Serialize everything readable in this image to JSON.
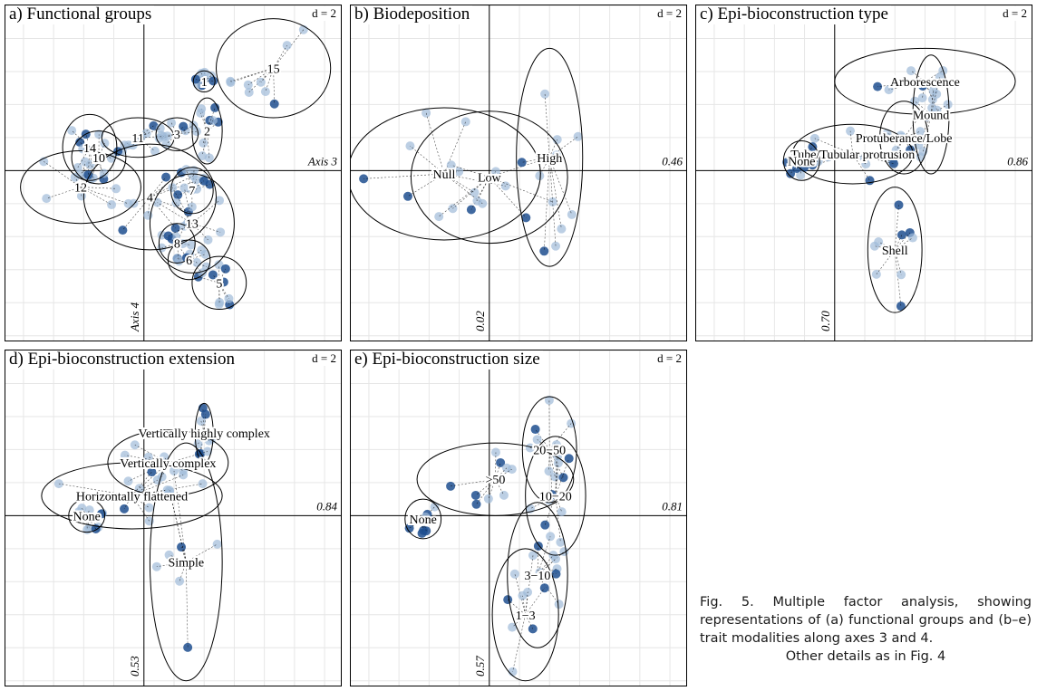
{
  "figure": {
    "caption_lines": [
      "Fig. 5. Multiple factor analysis,",
      "showing representations of (a)",
      "functional groups and (b–e) trait",
      "modalities along axes 3 and 4.",
      "Other details as in Fig. 4"
    ],
    "colors": {
      "point_light": "#9fbbd9",
      "point_dark": "#1f4f8f",
      "axis": "#000000",
      "grid": "#e6e6e6"
    }
  },
  "chart_data": [
    {
      "type": "scatter",
      "id": "a",
      "title": "a) Functional groups",
      "d_scale": "d = 2",
      "xlabel": "Axis 3",
      "ylabel": "Axis 4",
      "xlim": [
        -2.3,
        3.3
      ],
      "ylim": [
        -2.6,
        2.5
      ],
      "grid": true,
      "groups": [
        {
          "label": "1",
          "x": 1.0,
          "y": 1.35,
          "rx": 0.18,
          "ry": 0.16
        },
        {
          "label": "2",
          "x": 1.05,
          "y": 0.6,
          "rx": 0.25,
          "ry": 0.5
        },
        {
          "label": "3",
          "x": 0.55,
          "y": 0.55,
          "rx": 0.35,
          "ry": 0.25
        },
        {
          "label": "4",
          "x": 0.1,
          "y": -0.4,
          "rx": 1.1,
          "ry": 0.8
        },
        {
          "label": "5",
          "x": 1.25,
          "y": -1.7,
          "rx": 0.45,
          "ry": 0.4
        },
        {
          "label": "6",
          "x": 0.75,
          "y": -1.35,
          "rx": 0.35,
          "ry": 0.3
        },
        {
          "label": "7",
          "x": 0.8,
          "y": -0.3,
          "rx": 0.35,
          "ry": 0.35
        },
        {
          "label": "8",
          "x": 0.55,
          "y": -1.1,
          "rx": 0.3,
          "ry": 0.3
        },
        {
          "label": "10",
          "x": -0.75,
          "y": 0.2,
          "rx": 0.45,
          "ry": 0.4
        },
        {
          "label": "11",
          "x": -0.1,
          "y": 0.5,
          "rx": 0.6,
          "ry": 0.3
        },
        {
          "label": "12",
          "x": -1.05,
          "y": -0.25,
          "rx": 1.0,
          "ry": 0.55
        },
        {
          "label": "13",
          "x": 0.8,
          "y": -0.8,
          "rx": 0.7,
          "ry": 0.75
        },
        {
          "label": "14",
          "x": -0.9,
          "y": 0.35,
          "rx": 0.45,
          "ry": 0.5
        },
        {
          "label": "15",
          "x": 2.15,
          "y": 1.55,
          "rx": 0.95,
          "ry": 0.75
        }
      ]
    },
    {
      "type": "scatter",
      "id": "b",
      "title": "b) Biodeposition",
      "d_scale": "d = 2",
      "x_eigen_label": "0.46",
      "y_eigen_label": "0.02",
      "xlim": [
        -2.3,
        3.3
      ],
      "ylim": [
        -2.6,
        2.5
      ],
      "grid": true,
      "groups": [
        {
          "label": "Null",
          "x": -0.75,
          "y": -0.05,
          "rx": 1.6,
          "ry": 1.0
        },
        {
          "label": "Low",
          "x": 0.0,
          "y": -0.1,
          "rx": 1.3,
          "ry": 1.0
        },
        {
          "label": "High",
          "x": 1.0,
          "y": 0.2,
          "rx": 0.55,
          "ry": 1.65
        }
      ]
    },
    {
      "type": "scatter",
      "id": "c",
      "title": "c) Epi-bioconstruction type",
      "d_scale": "d = 2",
      "x_eigen_label": "0.86",
      "y_eigen_label": "0.70",
      "xlim": [
        -2.3,
        3.3
      ],
      "ylim": [
        -2.6,
        2.5
      ],
      "grid": true,
      "groups": [
        {
          "label": "Arborescence",
          "x": 1.5,
          "y": 1.35,
          "rx": 1.5,
          "ry": 0.5
        },
        {
          "label": "Mound",
          "x": 1.6,
          "y": 0.85,
          "rx": 0.3,
          "ry": 0.9
        },
        {
          "label": "Protuberance/Lobe",
          "x": 1.15,
          "y": 0.5,
          "rx": 0.4,
          "ry": 0.55
        },
        {
          "label": "Tube/Tubular protrusion",
          "x": 0.3,
          "y": 0.25,
          "rx": 1.0,
          "ry": 0.45
        },
        {
          "label": "None",
          "x": -0.55,
          "y": 0.15,
          "rx": 0.3,
          "ry": 0.3
        },
        {
          "label": "Shell",
          "x": 1.0,
          "y": -1.2,
          "rx": 0.45,
          "ry": 0.95
        }
      ]
    },
    {
      "type": "scatter",
      "id": "d",
      "title": "d) Epi-bioconstruction extension",
      "d_scale": "d = 2",
      "x_eigen_label": "0.84",
      "y_eigen_label": "0.53",
      "xlim": [
        -2.3,
        3.3
      ],
      "ylim": [
        -2.6,
        2.5
      ],
      "grid": true,
      "groups": [
        {
          "label": "Vertically highly complex",
          "x": 1.0,
          "y": 1.25,
          "rx": 0.15,
          "ry": 0.45
        },
        {
          "label": "Vertically complex",
          "x": 0.4,
          "y": 0.8,
          "rx": 1.0,
          "ry": 0.5
        },
        {
          "label": "Horizontally flattened",
          "x": -0.2,
          "y": 0.3,
          "rx": 1.5,
          "ry": 0.5
        },
        {
          "label": "None",
          "x": -0.95,
          "y": 0.0,
          "rx": 0.3,
          "ry": 0.25
        },
        {
          "label": "Simple",
          "x": 0.7,
          "y": -0.7,
          "rx": 0.6,
          "ry": 1.8
        }
      ]
    },
    {
      "type": "scatter",
      "id": "e",
      "title": "e) Epi-bioconstruction size",
      "d_scale": "d = 2",
      "x_eigen_label": "0.81",
      "y_eigen_label": "0.57",
      "xlim": [
        -2.3,
        3.3
      ],
      "ylim": [
        -2.6,
        2.5
      ],
      "grid": true,
      "groups": [
        {
          "label": "20−50",
          "x": 1.0,
          "y": 1.0,
          "rx": 0.45,
          "ry": 0.8
        },
        {
          "label": ">50",
          "x": 0.1,
          "y": 0.55,
          "rx": 1.3,
          "ry": 0.55
        },
        {
          "label": "10−20",
          "x": 1.1,
          "y": 0.3,
          "rx": 0.5,
          "ry": 0.9
        },
        {
          "label": "None",
          "x": -1.1,
          "y": -0.05,
          "rx": 0.3,
          "ry": 0.3
        },
        {
          "label": "3−10",
          "x": 0.8,
          "y": -0.9,
          "rx": 0.5,
          "ry": 1.1
        },
        {
          "label": "1−3",
          "x": 0.6,
          "y": -1.5,
          "rx": 0.55,
          "ry": 1.0
        }
      ]
    }
  ]
}
